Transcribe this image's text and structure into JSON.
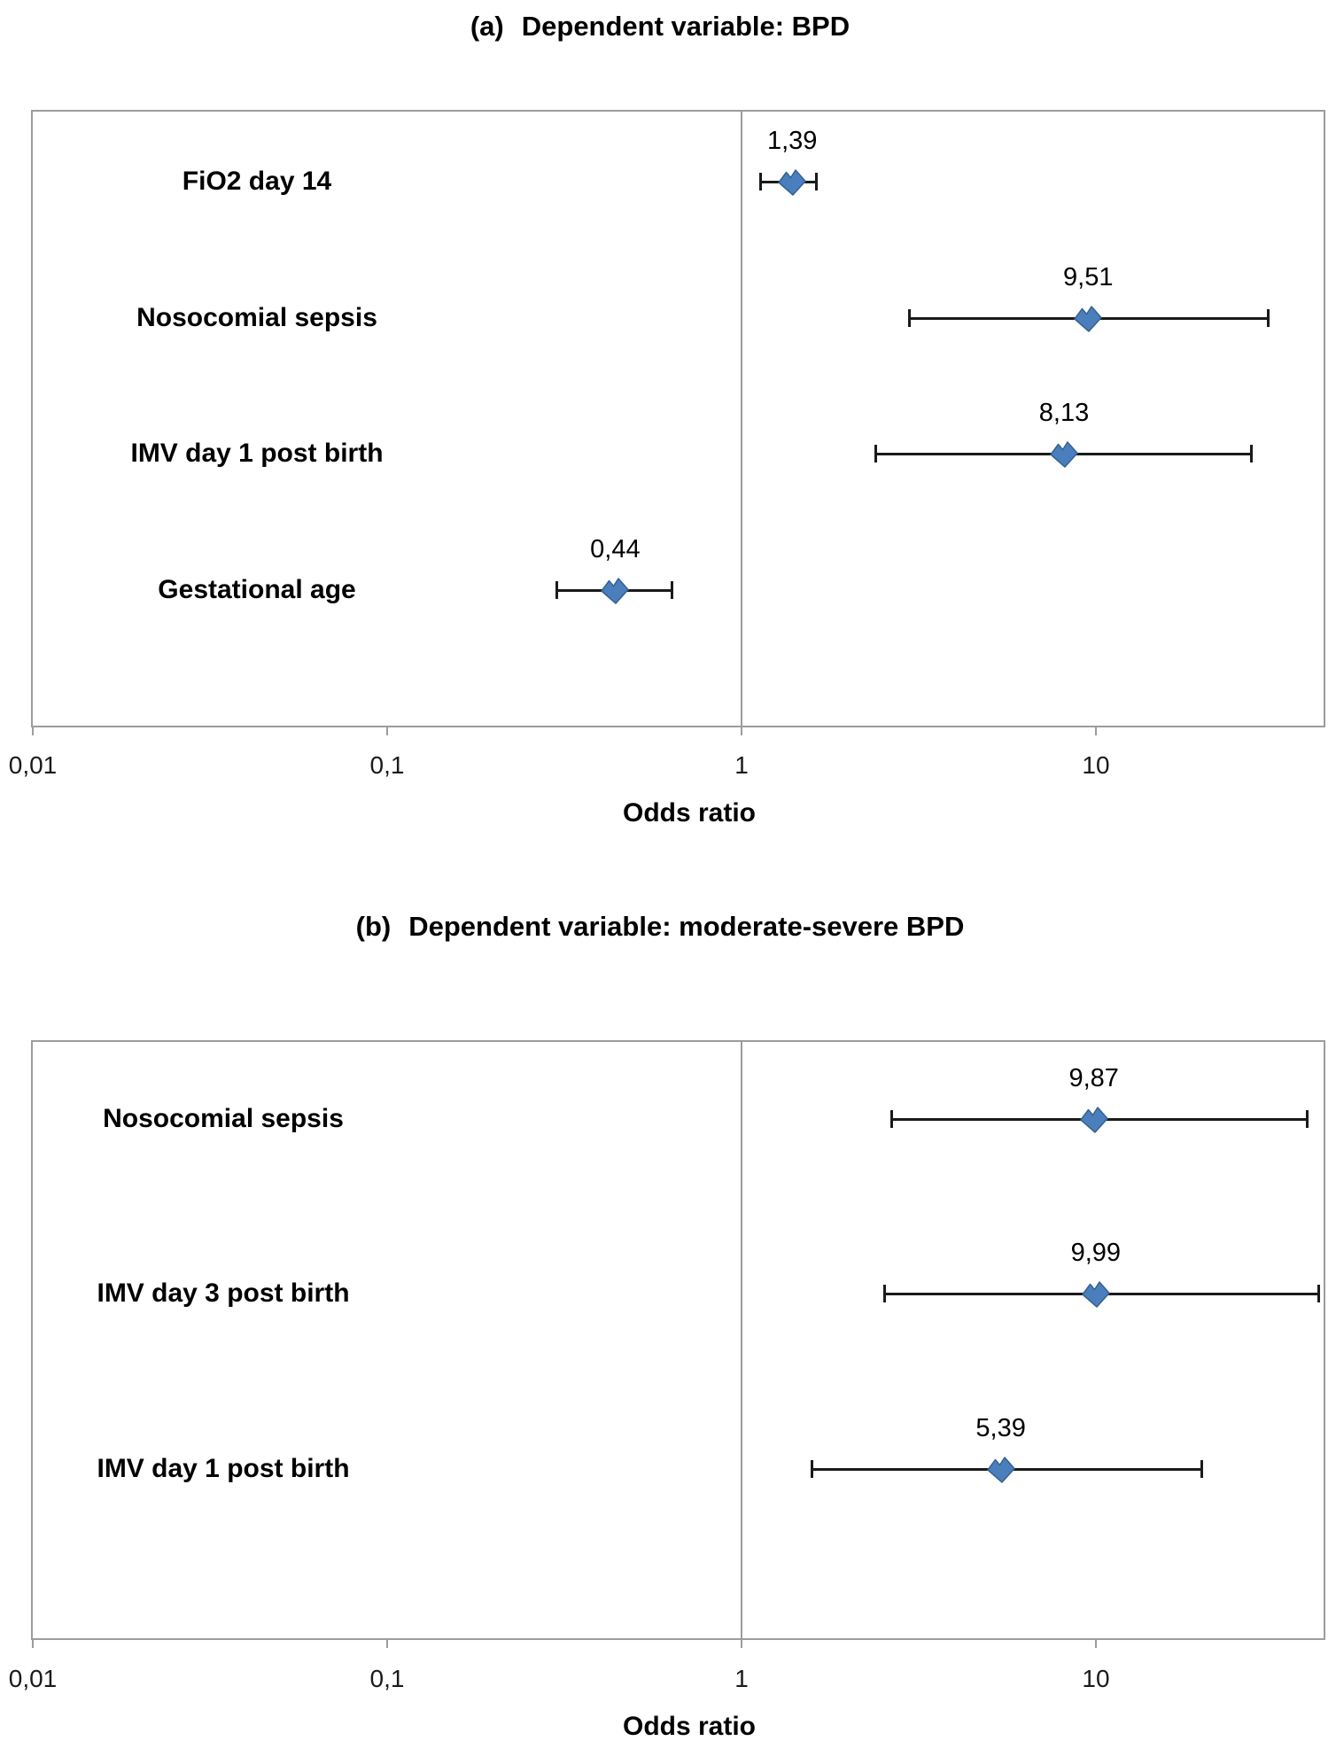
{
  "colors": {
    "marker_fill": "#4A7EBD",
    "marker_edge": "#36618E",
    "whisker": "#1A1A1A",
    "frame": "#9C9C9C",
    "text": "#000000",
    "background": "#FFFFFF"
  },
  "chart_data": [
    {
      "type": "scatter",
      "subtype": "forest-plot",
      "panel_label": "(a)",
      "title": "Dependent variable: BPD",
      "xlabel": "Odds ratio",
      "x_scale": "log",
      "xlim": [
        0.01,
        45
      ],
      "grid": false,
      "refline_x": 1,
      "x_ticks": [
        {
          "value": 0.01,
          "label": "0,01"
        },
        {
          "value": 0.1,
          "label": "0,1"
        },
        {
          "value": 1,
          "label": "1"
        },
        {
          "value": 10,
          "label": "10"
        }
      ],
      "rows": [
        {
          "category": "FiO2 day 14",
          "or": 1.39,
          "or_label": "1,39",
          "ci_low": 1.13,
          "ci_high": 1.63
        },
        {
          "category": "Nosocomial sepsis",
          "or": 9.51,
          "or_label": "9,51",
          "ci_low": 2.97,
          "ci_high": 30.7
        },
        {
          "category": "IMV day 1 post birth",
          "or": 8.13,
          "or_label": "8,13",
          "ci_low": 2.38,
          "ci_high": 27.5
        },
        {
          "category": "Gestational age",
          "or": 0.44,
          "or_label": "0,44",
          "ci_low": 0.3,
          "ci_high": 0.64
        }
      ]
    },
    {
      "type": "scatter",
      "subtype": "forest-plot",
      "panel_label": "(b)",
      "title": "Dependent variable: moderate-severe BPD",
      "xlabel": "Odds ratio",
      "x_scale": "log",
      "xlim": [
        0.01,
        45
      ],
      "grid": false,
      "refline_x": 1,
      "x_ticks": [
        {
          "value": 0.01,
          "label": "0,01"
        },
        {
          "value": 0.1,
          "label": "0,1"
        },
        {
          "value": 1,
          "label": "1"
        },
        {
          "value": 10,
          "label": "10"
        }
      ],
      "rows": [
        {
          "category": "Nosocomial sepsis",
          "or": 9.87,
          "or_label": "9,87",
          "ci_low": 2.64,
          "ci_high": 39.5
        },
        {
          "category": "IMV day 3 post birth",
          "or": 9.99,
          "or_label": "9,99",
          "ci_low": 2.53,
          "ci_high": 42.6
        },
        {
          "category": "IMV day 1 post birth",
          "or": 5.39,
          "or_label": "5,39",
          "ci_low": 1.58,
          "ci_high": 19.9
        }
      ]
    }
  ]
}
